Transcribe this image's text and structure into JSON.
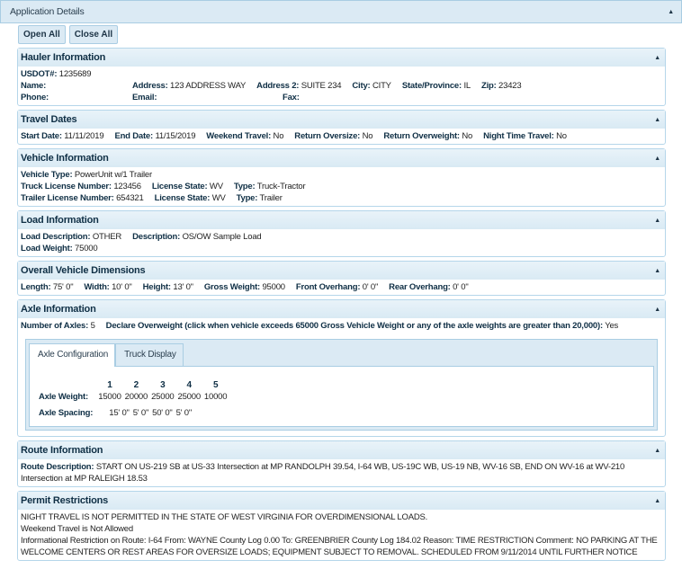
{
  "header": {
    "title": "Application Details"
  },
  "buttons": {
    "open_all": "Open All",
    "close_all": "Close All"
  },
  "sections": [
    {
      "id": "hauler",
      "title": "Hauler Information",
      "rows": [
        [
          {
            "label": "USDOT#:",
            "value": "1235689"
          }
        ],
        [
          {
            "label": "Name:",
            "value": "",
            "w": 124
          },
          {
            "label": "Address:",
            "value": "123 ADDRESS WAY"
          },
          {
            "label": "Address 2:",
            "value": "SUITE 234"
          },
          {
            "label": "City:",
            "value": "CITY"
          },
          {
            "label": "State/Province:",
            "value": "IL"
          },
          {
            "label": "Zip:",
            "value": "23423"
          }
        ],
        [
          {
            "label": "Phone:",
            "value": "",
            "w": 124
          },
          {
            "label": "Email:",
            "value": "",
            "w": 167
          },
          {
            "label": "Fax:",
            "value": ""
          }
        ]
      ]
    },
    {
      "id": "travel",
      "title": "Travel Dates",
      "rows": [
        [
          {
            "label": "Start Date:",
            "value": "11/11/2019"
          },
          {
            "label": "End Date:",
            "value": "11/15/2019"
          },
          {
            "label": "Weekend Travel:",
            "value": "No"
          },
          {
            "label": "Return Oversize:",
            "value": "No"
          },
          {
            "label": "Return Overweight:",
            "value": "No"
          },
          {
            "label": "Night Time Travel:",
            "value": "No"
          }
        ]
      ]
    },
    {
      "id": "vehicle",
      "title": "Vehicle Information",
      "rows": [
        [
          {
            "label": "Vehicle Type:",
            "value": "PowerUnit w/1 Trailer"
          }
        ],
        [
          {
            "label": "Truck License Number:",
            "value": "123456"
          },
          {
            "label": "License State:",
            "value": "WV"
          },
          {
            "label": "Type:",
            "value": "Truck-Tractor"
          }
        ],
        [
          {
            "label": "Trailer License Number:",
            "value": "654321"
          },
          {
            "label": "License State:",
            "value": "WV"
          },
          {
            "label": "Type:",
            "value": "Trailer"
          }
        ]
      ]
    },
    {
      "id": "load",
      "title": "Load Information",
      "rows": [
        [
          {
            "label": "Load Description:",
            "value": "OTHER"
          },
          {
            "label": "Description:",
            "value": "OS/OW Sample Load"
          }
        ],
        [
          {
            "label": "Load Weight:",
            "value": "75000"
          }
        ]
      ]
    },
    {
      "id": "dimensions",
      "title": "Overall Vehicle Dimensions",
      "rows": [
        [
          {
            "label": "Length:",
            "value": "75' 0\""
          },
          {
            "label": "Width:",
            "value": "10' 0\""
          },
          {
            "label": "Height:",
            "value": "13' 0\""
          },
          {
            "label": "Gross Weight:",
            "value": "95000"
          },
          {
            "label": "Front Overhang:",
            "value": "0' 0\""
          },
          {
            "label": "Rear Overhang:",
            "value": "0' 0\""
          }
        ]
      ]
    },
    {
      "id": "axle",
      "title": "Axle Information",
      "rows": [
        [
          {
            "label": "Number of Axles:",
            "value": "5"
          },
          {
            "label": "Declare Overweight (click when vehicle exceeds 65000 Gross Vehicle Weight or any of the axle weights are greater than 20,000):",
            "value": "Yes"
          }
        ]
      ],
      "tabs": [
        "Axle Configuration",
        "Truck Display"
      ],
      "axles": {
        "numbers": [
          "1",
          "2",
          "3",
          "4",
          "5"
        ],
        "weight_label": "Axle Weight:",
        "weights": [
          "15000",
          "20000",
          "25000",
          "25000",
          "10000"
        ],
        "spacing_label": "Axle Spacing:",
        "spacings": [
          "15' 0\"",
          "5' 0\"",
          "50' 0\"",
          "5' 0\""
        ]
      }
    },
    {
      "id": "route",
      "title": "Route Information",
      "wrap": true,
      "rows": [
        [
          {
            "label": "Route Description:",
            "value": "START ON US-219 SB at US-33 Intersection at MP RANDOLPH 39.54, I-64 WB, US-19C WB, US-19 NB, WV-16 SB, END ON WV-16 at WV-210 Intersection at MP RALEIGH 18.53"
          }
        ]
      ]
    },
    {
      "id": "restrictions",
      "title": "Permit Restrictions",
      "lines": [
        "NIGHT TRAVEL IS NOT PERMITTED IN THE STATE OF WEST VIRGINIA FOR OVERDIMENSIONAL LOADS.",
        "Weekend Travel is Not Allowed",
        "Informational Restriction on Route: I-64 From: WAYNE County Log 0.00 To: GREENBRIER County Log 184.02 Reason: TIME RESTRICTION Comment: NO PARKING AT THE WELCOME CENTERS OR REST AREAS FOR OVERSIZE LOADS; EQUIPMENT SUBJECT TO REMOVAL. SCHEDULED FROM 9/11/2014 UNTIL FURTHER NOTICE"
      ]
    }
  ]
}
